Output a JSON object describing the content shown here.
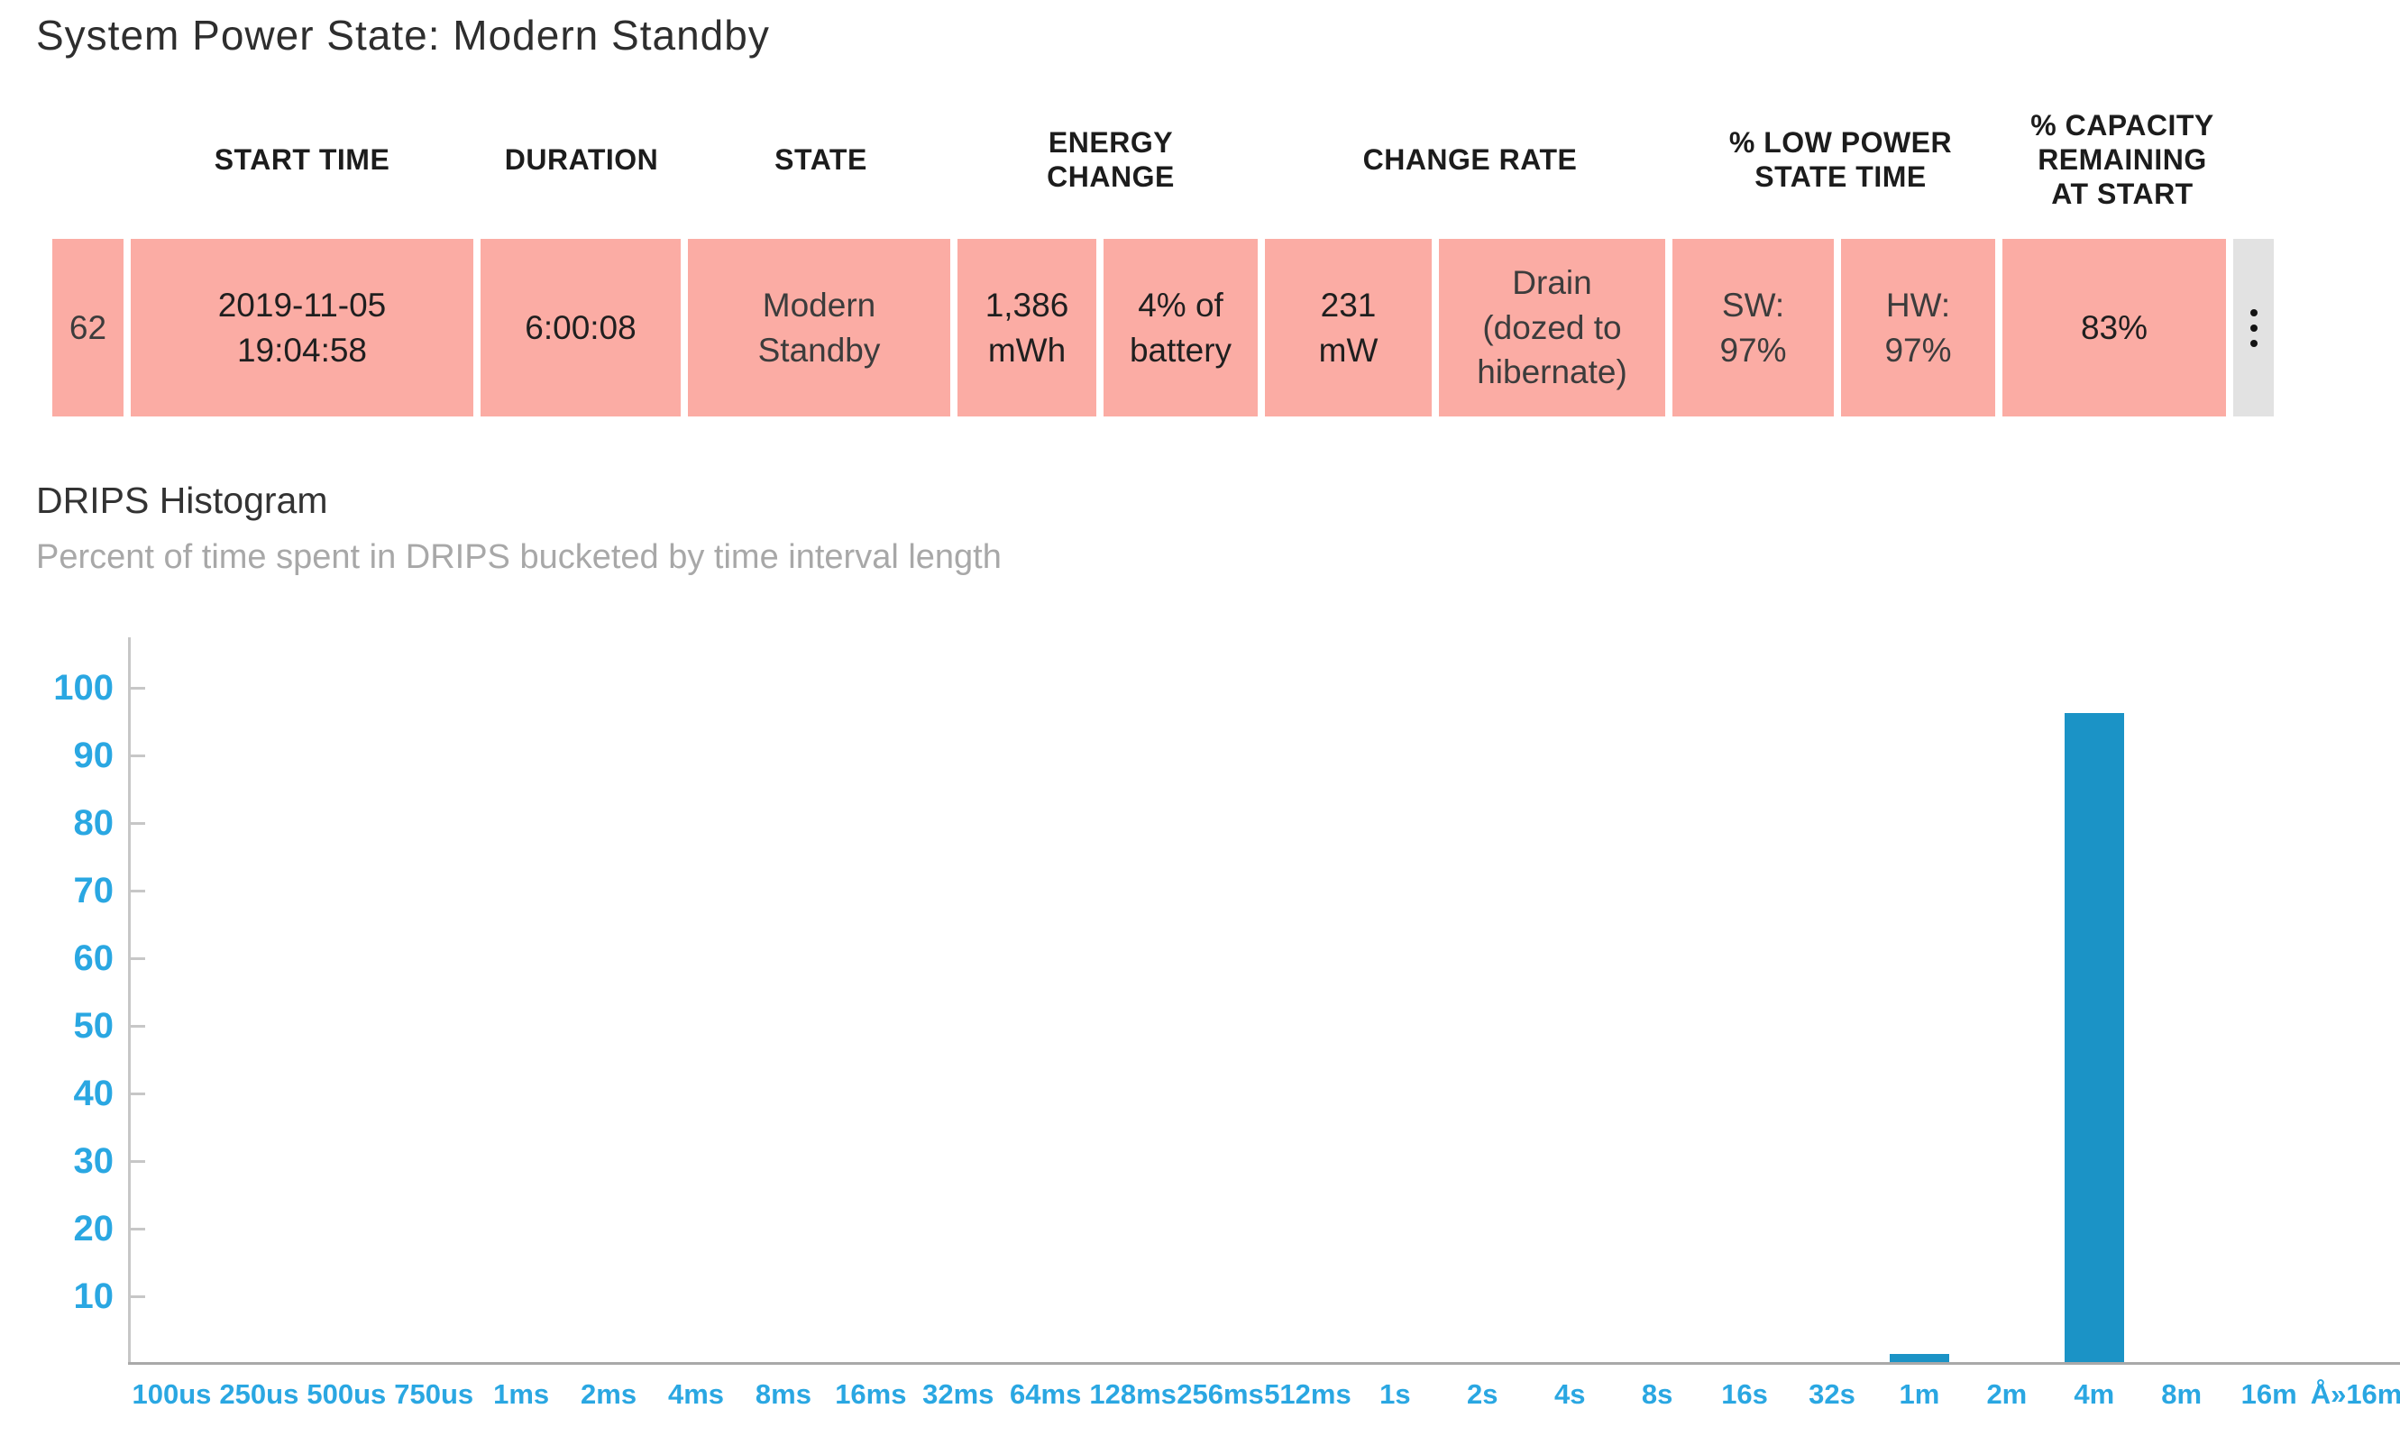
{
  "page": {
    "title": "System Power State: Modern Standby"
  },
  "colors": {
    "row_bg": "#FBACA4",
    "menu_bg": "#E2E2E2",
    "bar": "#1B93C6",
    "axis_labels": "#2AA7E2",
    "axis_line": "#C7C7C7",
    "baseline": "#A9A9A9"
  },
  "icons": {
    "kebab_menu": "vertical-ellipsis"
  },
  "table": {
    "headers": [
      "START TIME",
      "DURATION",
      "STATE",
      "ENERGY\nCHANGE",
      "CHANGE RATE",
      "% LOW POWER\nSTATE TIME",
      "% CAPACITY\nREMAINING\nAT START"
    ],
    "row": {
      "index": "62",
      "start_time": "2019-11-05\n19:04:58",
      "duration": "6:00:08",
      "state": "Modern\nStandby",
      "energy_mwh": "1,386\nmWh",
      "energy_pct": "4% of\nbattery",
      "rate_mw": "231\nmW",
      "rate_note": "Drain\n(dozed to\nhibernate)",
      "sw_time": "SW:\n97%",
      "hw_time": "HW:\n97%",
      "capacity": "83%"
    }
  },
  "chart_data": {
    "type": "bar",
    "title": "DRIPS Histogram",
    "subtitle": "Percent of time spent in DRIPS bucketed by time interval length",
    "xlabel": "",
    "ylabel": "",
    "ylim": [
      0,
      107.5
    ],
    "yticks": [
      10,
      20,
      30,
      40,
      50,
      60,
      70,
      80,
      90,
      100
    ],
    "grid": false,
    "legend": "none",
    "categories": [
      "100us",
      "250us",
      "500us",
      "750us",
      "1ms",
      "2ms",
      "4ms",
      "8ms",
      "16ms",
      "32ms",
      "64ms",
      "128ms",
      "256ms",
      "512ms",
      "1s",
      "2s",
      "4s",
      "8s",
      "16s",
      "32s",
      "1m",
      "2m",
      "4m",
      "8m",
      "16m",
      "Å»16m"
    ],
    "values": [
      0,
      0,
      0,
      0,
      0,
      0,
      0,
      0,
      0,
      0,
      0,
      0,
      0,
      0,
      0,
      0,
      0,
      0,
      0,
      0,
      1.2,
      0,
      96,
      0,
      0,
      0
    ]
  }
}
